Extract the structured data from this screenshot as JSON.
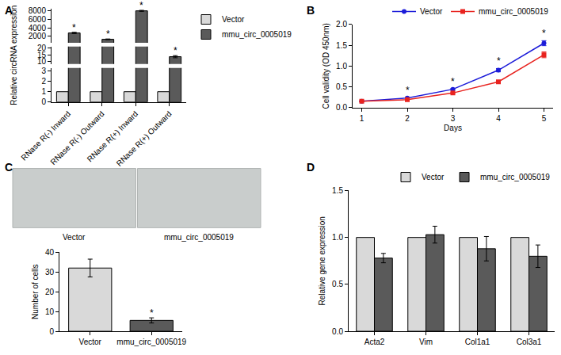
{
  "chart_data": [
    {
      "panel": "A",
      "type": "bar",
      "categories": [
        "RNase R(-) Inward",
        "RNase R(-) Outward",
        "RNase R(+) Inward",
        "RNase R(+) Outward"
      ],
      "y_label": "Relative circRNA expression",
      "y_segments": [
        {
          "ylim": [
            0,
            3.3
          ],
          "yticks": [
            0,
            1,
            2,
            3
          ]
        },
        {
          "ylim": [
            8,
            21
          ],
          "yticks": [
            10,
            15,
            20
          ]
        },
        {
          "ylim": [
            500,
            8500
          ],
          "yticks": [
            2000,
            4000,
            6000,
            8000
          ]
        }
      ],
      "series": [
        {
          "name": "Vector",
          "color": "#d9d9d9",
          "values": [
            1,
            1,
            1,
            1
          ]
        },
        {
          "name": "mmu_circ_0005019",
          "color": "#5a5a5a",
          "values": [
            2800,
            1300,
            8000,
            13.5
          ],
          "errors": [
            150,
            80,
            120,
            0.8
          ],
          "significance": [
            "*",
            "*",
            "*",
            "*"
          ]
        }
      ],
      "legend": "right"
    },
    {
      "panel": "B",
      "type": "line",
      "x": [
        1,
        2,
        3,
        4,
        5
      ],
      "x_label": "Days",
      "y_label": "Cell validity (OD 450nm)",
      "xlim": [
        0.8,
        5.2
      ],
      "xticks": [
        1,
        2,
        3,
        4,
        5
      ],
      "ylim": [
        0,
        2
      ],
      "yticks": [
        {
          "value": 0,
          "label": "0.0"
        },
        0.5,
        {
          "value": 1,
          "label": "1.0"
        },
        1.5,
        {
          "value": 2,
          "label": "2.0"
        }
      ],
      "series": [
        {
          "name": "Vector",
          "color": "#1c1cd9",
          "marker": "circle",
          "values": [
            0.15,
            0.23,
            0.44,
            0.9,
            1.55
          ],
          "errors": [
            0.01,
            0.01,
            0.02,
            0.04,
            0.06
          ],
          "significance": [
            null,
            "*",
            "*",
            "*",
            "*"
          ]
        },
        {
          "name": "mmu_circ_0005019",
          "color": "#e8231f",
          "marker": "square",
          "values": [
            0.15,
            0.19,
            0.35,
            0.62,
            1.27
          ],
          "errors": [
            0.01,
            0.01,
            0.02,
            0.02,
            0.07
          ]
        }
      ],
      "legend": "top right"
    },
    {
      "panel": "C",
      "type": "bar",
      "image_labels": [
        "Vector",
        "mmu_circ_0005019"
      ],
      "categories": [
        "Vector",
        "mmu_circ_0005019"
      ],
      "values": [
        32,
        5.5
      ],
      "errors": [
        4.5,
        1.3
      ],
      "colors": [
        "#d9d9d9",
        "#5a5a5a"
      ],
      "significance": [
        null,
        "*"
      ],
      "y_label": "Number of cells",
      "ylim": [
        0,
        40
      ],
      "yticks": [
        0,
        10,
        20,
        30,
        40
      ]
    },
    {
      "panel": "D",
      "type": "bar",
      "categories": [
        "Acta2",
        "Vim",
        "Col1a1",
        "Col3a1"
      ],
      "y_label": "Relative gene expression",
      "ylim": [
        0,
        1.5
      ],
      "yticks": [
        {
          "value": 0,
          "label": "0.0"
        },
        0.5,
        {
          "value": 1,
          "label": "1.0"
        },
        1.5
      ],
      "series": [
        {
          "name": "Vector",
          "color": "#d9d9d9",
          "values": [
            1,
            1,
            1,
            1
          ]
        },
        {
          "name": "mmu_circ_0005019",
          "color": "#5a5a5a",
          "values": [
            0.78,
            1.03,
            0.88,
            0.8
          ],
          "errors": [
            0.05,
            0.09,
            0.13,
            0.12
          ]
        }
      ],
      "legend": "top right"
    }
  ]
}
